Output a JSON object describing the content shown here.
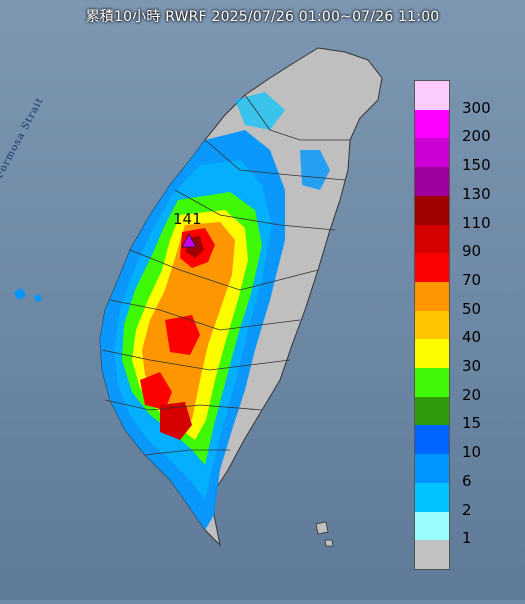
{
  "title": "累積10小時 RWRF 2025/07/26 01:00~07/26 11:00",
  "strait_label": "Formosa Strait",
  "peak": {
    "value": "141",
    "marker_color": "#c500ff"
  },
  "legend": {
    "items": [
      {
        "label": "300",
        "color": "#fccbff"
      },
      {
        "label": "200",
        "color": "#fd00ff"
      },
      {
        "label": "150",
        "color": "#cc00d5"
      },
      {
        "label": "130",
        "color": "#9d009f"
      },
      {
        "label": "110",
        "color": "#9f0000"
      },
      {
        "label": "90",
        "color": "#d50000"
      },
      {
        "label": "70",
        "color": "#fd0000"
      },
      {
        "label": "50",
        "color": "#fd9600"
      },
      {
        "label": "40",
        "color": "#fdc600"
      },
      {
        "label": "30",
        "color": "#fdfd00"
      },
      {
        "label": "20",
        "color": "#3ef806"
      },
      {
        "label": "15",
        "color": "#2f9a0a"
      },
      {
        "label": "10",
        "color": "#0066ff"
      },
      {
        "label": "6",
        "color": "#0096ff"
      },
      {
        "label": "2",
        "color": "#00c3ff"
      },
      {
        "label": "1",
        "color": "#9bfdfd"
      },
      {
        "label": "",
        "color": "#c1c1c1"
      }
    ]
  },
  "colors": {
    "sea": "#6f8aa7",
    "land_no_rain": "#bfbfbf",
    "border": "#333333"
  }
}
